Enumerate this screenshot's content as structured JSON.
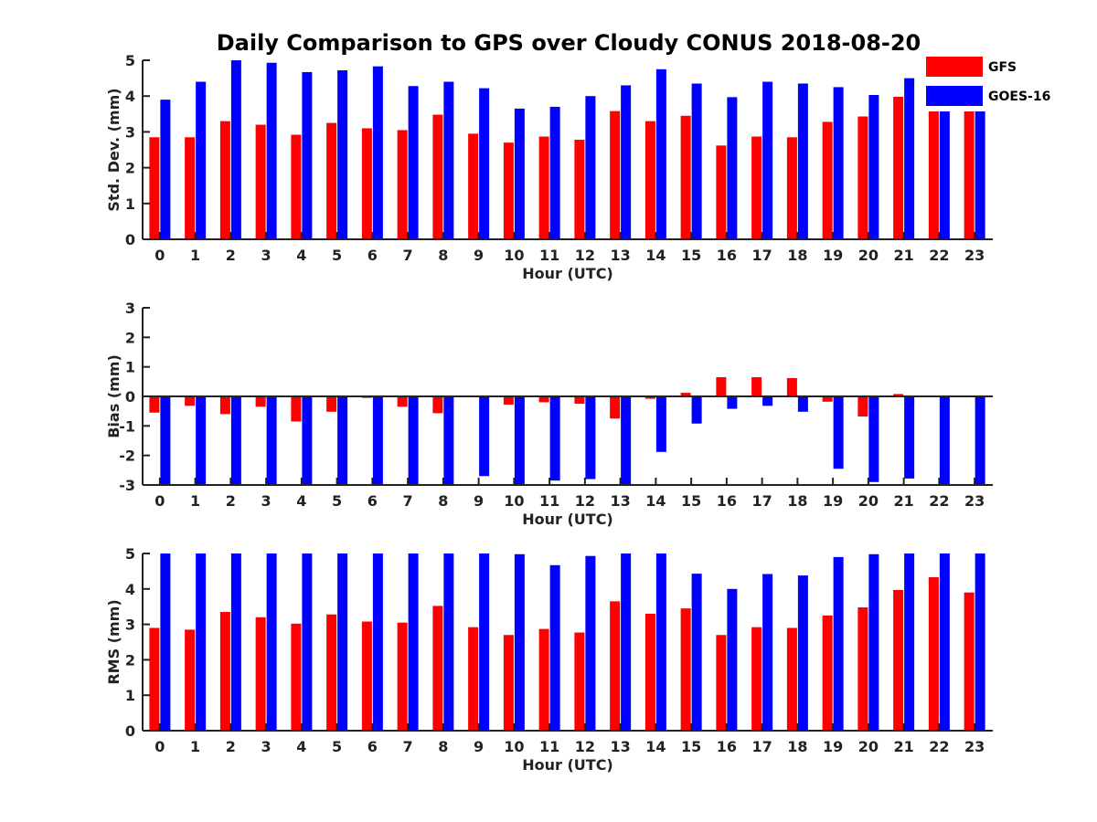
{
  "title": "Daily Comparison to GPS over Cloudy CONUS 2018-08-20",
  "legend": {
    "placement": "top-right",
    "items": [
      {
        "label": "GFS",
        "color": "#ff0000"
      },
      {
        "label": "GOES-16",
        "color": "#0000ff"
      }
    ]
  },
  "chart_data": [
    {
      "type": "bar",
      "title": "Daily Comparison to GPS over Cloudy CONUS 2018-08-20",
      "xlabel": "Hour (UTC)",
      "ylabel": "Std. Dev. (mm)",
      "ylim": [
        0,
        5
      ],
      "yticks": [
        0,
        1,
        2,
        3,
        4,
        5
      ],
      "categories": [
        "0",
        "1",
        "2",
        "3",
        "4",
        "5",
        "6",
        "7",
        "8",
        "9",
        "10",
        "11",
        "12",
        "13",
        "14",
        "15",
        "16",
        "17",
        "18",
        "19",
        "20",
        "21",
        "22",
        "23"
      ],
      "series": [
        {
          "name": "GFS",
          "color": "#ff0000",
          "values": [
            2.85,
            2.85,
            3.3,
            3.2,
            2.92,
            3.25,
            3.1,
            3.05,
            3.48,
            2.95,
            2.7,
            2.87,
            2.78,
            3.58,
            3.3,
            3.45,
            2.62,
            2.87,
            2.85,
            3.28,
            3.43,
            3.98,
            4.32,
            3.88
          ]
        },
        {
          "name": "GOES-16",
          "color": "#0000ff",
          "values": [
            3.9,
            4.4,
            5.0,
            4.93,
            4.67,
            4.72,
            4.83,
            4.28,
            4.4,
            4.22,
            3.65,
            3.7,
            4.0,
            4.3,
            4.75,
            4.35,
            3.97,
            4.4,
            4.35,
            4.25,
            4.03,
            4.5,
            4.65,
            4.65
          ]
        }
      ]
    },
    {
      "type": "bar",
      "xlabel": "Hour (UTC)",
      "ylabel": "Bias (mm)",
      "ylim": [
        -3,
        3
      ],
      "yticks": [
        -3,
        -2,
        -1,
        0,
        1,
        2,
        3
      ],
      "categories": [
        "0",
        "1",
        "2",
        "3",
        "4",
        "5",
        "6",
        "7",
        "8",
        "9",
        "10",
        "11",
        "12",
        "13",
        "14",
        "15",
        "16",
        "17",
        "18",
        "19",
        "20",
        "21",
        "22",
        "23"
      ],
      "series": [
        {
          "name": "GFS",
          "color": "#ff0000",
          "values": [
            -0.55,
            -0.32,
            -0.6,
            -0.35,
            -0.85,
            -0.52,
            -0.05,
            -0.35,
            -0.57,
            -0.03,
            -0.28,
            -0.2,
            -0.25,
            -0.75,
            -0.08,
            0.12,
            0.65,
            0.65,
            0.62,
            -0.18,
            -0.68,
            0.08,
            0.0,
            0.0
          ]
        },
        {
          "name": "GOES-16",
          "color": "#0000ff",
          "values": [
            -3.0,
            -3.0,
            -3.0,
            -3.0,
            -3.0,
            -3.0,
            -3.0,
            -3.0,
            -3.0,
            -2.7,
            -3.0,
            -2.85,
            -2.8,
            -3.0,
            -1.88,
            -0.92,
            -0.42,
            -0.32,
            -0.52,
            -2.45,
            -2.9,
            -2.78,
            -3.0,
            -3.0
          ]
        }
      ]
    },
    {
      "type": "bar",
      "xlabel": "Hour (UTC)",
      "ylabel": "RMS (mm)",
      "ylim": [
        0,
        5
      ],
      "yticks": [
        0,
        1,
        2,
        3,
        4,
        5
      ],
      "categories": [
        "0",
        "1",
        "2",
        "3",
        "4",
        "5",
        "6",
        "7",
        "8",
        "9",
        "10",
        "11",
        "12",
        "13",
        "14",
        "15",
        "16",
        "17",
        "18",
        "19",
        "20",
        "21",
        "22",
        "23"
      ],
      "series": [
        {
          "name": "GFS",
          "color": "#ff0000",
          "values": [
            2.9,
            2.85,
            3.35,
            3.2,
            3.02,
            3.28,
            3.08,
            3.05,
            3.52,
            2.92,
            2.7,
            2.87,
            2.77,
            3.65,
            3.3,
            3.45,
            2.7,
            2.92,
            2.9,
            3.25,
            3.48,
            3.97,
            4.33,
            3.9
          ]
        },
        {
          "name": "GOES-16",
          "color": "#0000ff",
          "values": [
            5.0,
            5.0,
            5.0,
            5.0,
            5.0,
            5.0,
            5.0,
            5.0,
            5.0,
            5.0,
            4.98,
            4.67,
            4.93,
            5.0,
            5.0,
            4.43,
            4.0,
            4.42,
            4.38,
            4.9,
            4.98,
            5.0,
            5.0,
            5.0
          ]
        }
      ]
    }
  ]
}
